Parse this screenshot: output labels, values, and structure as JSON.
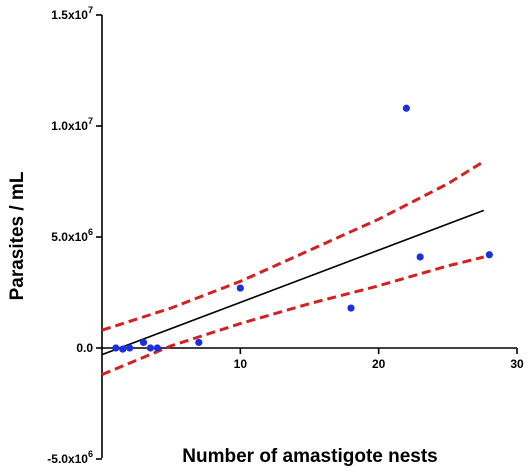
{
  "chart_data": {
    "type": "scatter",
    "title": "",
    "xlabel": "Number of amastigote nests",
    "ylabel": "Parasites / mL",
    "xlim": [
      0,
      30
    ],
    "ylim": [
      -5000000,
      15000000
    ],
    "x_ticks": [
      {
        "value": 10,
        "label": "10"
      },
      {
        "value": 20,
        "label": "20"
      },
      {
        "value": 30,
        "label": "30"
      }
    ],
    "y_ticks": [
      {
        "value": -5000000,
        "base": "-5.0x10",
        "exp": "6"
      },
      {
        "value": 0,
        "base": "0.0",
        "exp": ""
      },
      {
        "value": 5000000,
        "base": "5.0x10",
        "exp": "6"
      },
      {
        "value": 10000000,
        "base": "1.0x10",
        "exp": "7"
      },
      {
        "value": 15000000,
        "base": "1.5x10",
        "exp": "7"
      }
    ],
    "grid": false,
    "legend": "none",
    "points": {
      "color": "#1a2fe0",
      "x": [
        1,
        1.5,
        2,
        3,
        3.5,
        4,
        7,
        10,
        18,
        22,
        23,
        28
      ],
      "y": [
        0,
        -50000,
        0,
        250000,
        0,
        0,
        250000,
        2700000,
        1800000,
        10800000,
        4100000,
        4200000
      ]
    },
    "fit_line": {
      "color": "#000000",
      "x": [
        0,
        27.6
      ],
      "y": [
        -300000,
        6200000
      ]
    },
    "confidence_band": {
      "color": "#d42020",
      "style": "dashed",
      "upper": {
        "x": [
          0,
          5,
          10,
          15,
          20,
          25,
          27.6
        ],
        "y": [
          800000,
          1800000,
          3000000,
          4400000,
          5800000,
          7400000,
          8400000
        ]
      },
      "lower": {
        "x": [
          0,
          5,
          10,
          15,
          20,
          25,
          27.6
        ],
        "y": [
          -1200000,
          100000,
          1100000,
          2000000,
          2800000,
          3700000,
          4100000
        ]
      }
    }
  }
}
